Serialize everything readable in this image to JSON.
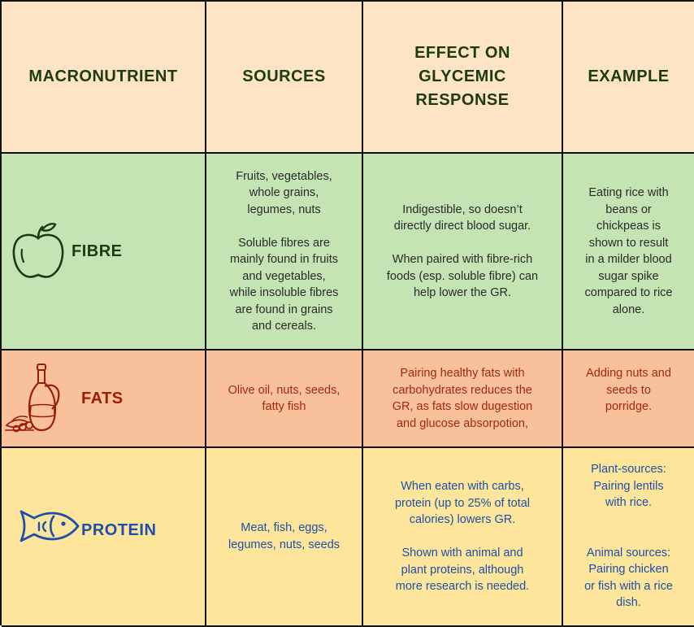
{
  "header": {
    "macronutrient": "MACRONUTRIENT",
    "sources": "SOURCES",
    "effect_line1": "EFFECT ON",
    "effect_line2": "GLYCEMIC",
    "effect_line3": "RESPONSE",
    "example": "EXAMPLE"
  },
  "rows": {
    "fibre": {
      "label": "FIBRE",
      "icon": "apple-icon",
      "sources": [
        "Fruits, vegetables,",
        "whole grains,",
        "legumes, nuts",
        "",
        "Soluble fibres are",
        "mainly found in fruits",
        "and vegetables,",
        "while insoluble fibres",
        "are found in grains",
        "and cereals."
      ],
      "effect": [
        "Indigestible, so doesn’t",
        "directly direct blood sugar.",
        "",
        "When paired with fibre-rich",
        "foods (esp. soluble fibre) can",
        "help lower the GR."
      ],
      "example": [
        "Eating rice with",
        "beans or",
        "chickpeas is",
        "shown to result",
        "in a milder blood",
        "sugar spike",
        "compared to rice",
        "alone."
      ]
    },
    "fats": {
      "label": "FATS",
      "icon": "oil-bottle-icon",
      "sources": [
        "Olive oil, nuts, seeds,",
        "fatty fish"
      ],
      "effect": [
        "Pairing healthy fats with",
        "carbohydrates reduces the",
        "GR, as fats slow dugestion",
        "and glucose absorpotion,"
      ],
      "example": [
        "Adding nuts and",
        "seeds to",
        "porridge."
      ]
    },
    "protein": {
      "label": "PROTEIN",
      "icon": "fish-icon",
      "sources": [
        "Meat, fish, eggs,",
        "legumes, nuts, seeds"
      ],
      "effect": [
        "When eaten with carbs,",
        "protein (up to 25% of total",
        "calories) lowers GR.",
        "",
        "Shown with animal and",
        "plant proteins, although",
        "more research is needed."
      ],
      "example": [
        "Plant-sources:",
        "Pairing lentils",
        "with rice.",
        "",
        "",
        "Animal sources:",
        "Pairing chicken",
        "or fish with a rice",
        "dish."
      ]
    }
  },
  "colors": {
    "header_bg": "#fde4c4",
    "fibre_bg": "#c5e4b3",
    "fats_bg": "#f9c09c",
    "protein_bg": "#fde59b",
    "fibre_accent": "#1e3a12",
    "fats_accent": "#9b1c06",
    "protein_accent": "#1f4fa6"
  }
}
